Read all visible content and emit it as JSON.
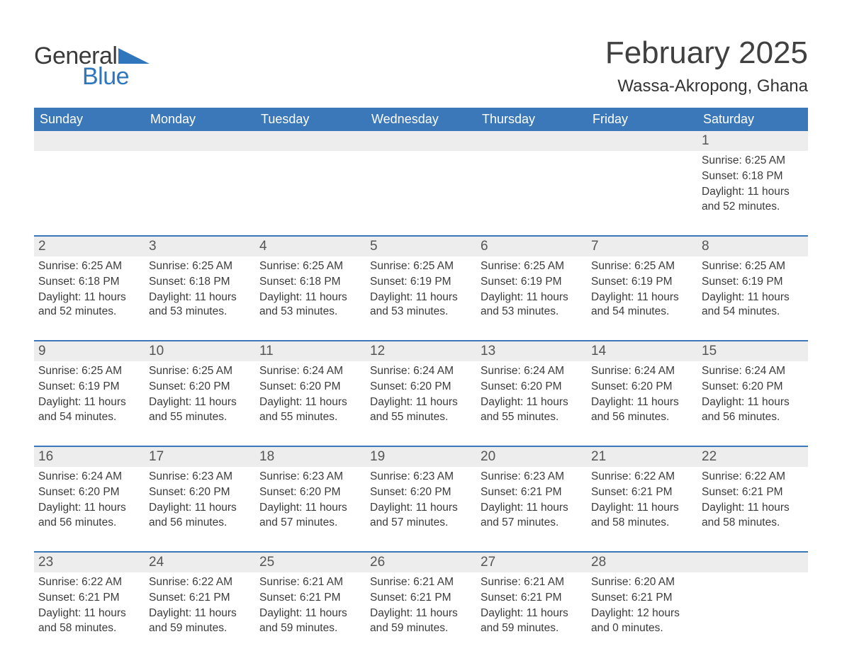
{
  "logo": {
    "text1": "General",
    "text2": "Blue",
    "accent_color": "#2f76bc"
  },
  "title": "February 2025",
  "location": "Wassa-Akropong, Ghana",
  "colors": {
    "header_bg": "#3a78b9",
    "header_text": "#ffffff",
    "daynum_bg": "#ededed",
    "separator": "#3a78b9",
    "body_text": "#3b3b3b"
  },
  "day_headers": [
    "Sunday",
    "Monday",
    "Tuesday",
    "Wednesday",
    "Thursday",
    "Friday",
    "Saturday"
  ],
  "weeks": [
    [
      null,
      null,
      null,
      null,
      null,
      null,
      {
        "n": "1",
        "sr": "Sunrise: 6:25 AM",
        "ss": "Sunset: 6:18 PM",
        "dl": "Daylight: 11 hours and 52 minutes."
      }
    ],
    [
      {
        "n": "2",
        "sr": "Sunrise: 6:25 AM",
        "ss": "Sunset: 6:18 PM",
        "dl": "Daylight: 11 hours and 52 minutes."
      },
      {
        "n": "3",
        "sr": "Sunrise: 6:25 AM",
        "ss": "Sunset: 6:18 PM",
        "dl": "Daylight: 11 hours and 53 minutes."
      },
      {
        "n": "4",
        "sr": "Sunrise: 6:25 AM",
        "ss": "Sunset: 6:18 PM",
        "dl": "Daylight: 11 hours and 53 minutes."
      },
      {
        "n": "5",
        "sr": "Sunrise: 6:25 AM",
        "ss": "Sunset: 6:19 PM",
        "dl": "Daylight: 11 hours and 53 minutes."
      },
      {
        "n": "6",
        "sr": "Sunrise: 6:25 AM",
        "ss": "Sunset: 6:19 PM",
        "dl": "Daylight: 11 hours and 53 minutes."
      },
      {
        "n": "7",
        "sr": "Sunrise: 6:25 AM",
        "ss": "Sunset: 6:19 PM",
        "dl": "Daylight: 11 hours and 54 minutes."
      },
      {
        "n": "8",
        "sr": "Sunrise: 6:25 AM",
        "ss": "Sunset: 6:19 PM",
        "dl": "Daylight: 11 hours and 54 minutes."
      }
    ],
    [
      {
        "n": "9",
        "sr": "Sunrise: 6:25 AM",
        "ss": "Sunset: 6:19 PM",
        "dl": "Daylight: 11 hours and 54 minutes."
      },
      {
        "n": "10",
        "sr": "Sunrise: 6:25 AM",
        "ss": "Sunset: 6:20 PM",
        "dl": "Daylight: 11 hours and 55 minutes."
      },
      {
        "n": "11",
        "sr": "Sunrise: 6:24 AM",
        "ss": "Sunset: 6:20 PM",
        "dl": "Daylight: 11 hours and 55 minutes."
      },
      {
        "n": "12",
        "sr": "Sunrise: 6:24 AM",
        "ss": "Sunset: 6:20 PM",
        "dl": "Daylight: 11 hours and 55 minutes."
      },
      {
        "n": "13",
        "sr": "Sunrise: 6:24 AM",
        "ss": "Sunset: 6:20 PM",
        "dl": "Daylight: 11 hours and 55 minutes."
      },
      {
        "n": "14",
        "sr": "Sunrise: 6:24 AM",
        "ss": "Sunset: 6:20 PM",
        "dl": "Daylight: 11 hours and 56 minutes."
      },
      {
        "n": "15",
        "sr": "Sunrise: 6:24 AM",
        "ss": "Sunset: 6:20 PM",
        "dl": "Daylight: 11 hours and 56 minutes."
      }
    ],
    [
      {
        "n": "16",
        "sr": "Sunrise: 6:24 AM",
        "ss": "Sunset: 6:20 PM",
        "dl": "Daylight: 11 hours and 56 minutes."
      },
      {
        "n": "17",
        "sr": "Sunrise: 6:23 AM",
        "ss": "Sunset: 6:20 PM",
        "dl": "Daylight: 11 hours and 56 minutes."
      },
      {
        "n": "18",
        "sr": "Sunrise: 6:23 AM",
        "ss": "Sunset: 6:20 PM",
        "dl": "Daylight: 11 hours and 57 minutes."
      },
      {
        "n": "19",
        "sr": "Sunrise: 6:23 AM",
        "ss": "Sunset: 6:20 PM",
        "dl": "Daylight: 11 hours and 57 minutes."
      },
      {
        "n": "20",
        "sr": "Sunrise: 6:23 AM",
        "ss": "Sunset: 6:21 PM",
        "dl": "Daylight: 11 hours and 57 minutes."
      },
      {
        "n": "21",
        "sr": "Sunrise: 6:22 AM",
        "ss": "Sunset: 6:21 PM",
        "dl": "Daylight: 11 hours and 58 minutes."
      },
      {
        "n": "22",
        "sr": "Sunrise: 6:22 AM",
        "ss": "Sunset: 6:21 PM",
        "dl": "Daylight: 11 hours and 58 minutes."
      }
    ],
    [
      {
        "n": "23",
        "sr": "Sunrise: 6:22 AM",
        "ss": "Sunset: 6:21 PM",
        "dl": "Daylight: 11 hours and 58 minutes."
      },
      {
        "n": "24",
        "sr": "Sunrise: 6:22 AM",
        "ss": "Sunset: 6:21 PM",
        "dl": "Daylight: 11 hours and 59 minutes."
      },
      {
        "n": "25",
        "sr": "Sunrise: 6:21 AM",
        "ss": "Sunset: 6:21 PM",
        "dl": "Daylight: 11 hours and 59 minutes."
      },
      {
        "n": "26",
        "sr": "Sunrise: 6:21 AM",
        "ss": "Sunset: 6:21 PM",
        "dl": "Daylight: 11 hours and 59 minutes."
      },
      {
        "n": "27",
        "sr": "Sunrise: 6:21 AM",
        "ss": "Sunset: 6:21 PM",
        "dl": "Daylight: 11 hours and 59 minutes."
      },
      {
        "n": "28",
        "sr": "Sunrise: 6:20 AM",
        "ss": "Sunset: 6:21 PM",
        "dl": "Daylight: 12 hours and 0 minutes."
      },
      null
    ]
  ]
}
